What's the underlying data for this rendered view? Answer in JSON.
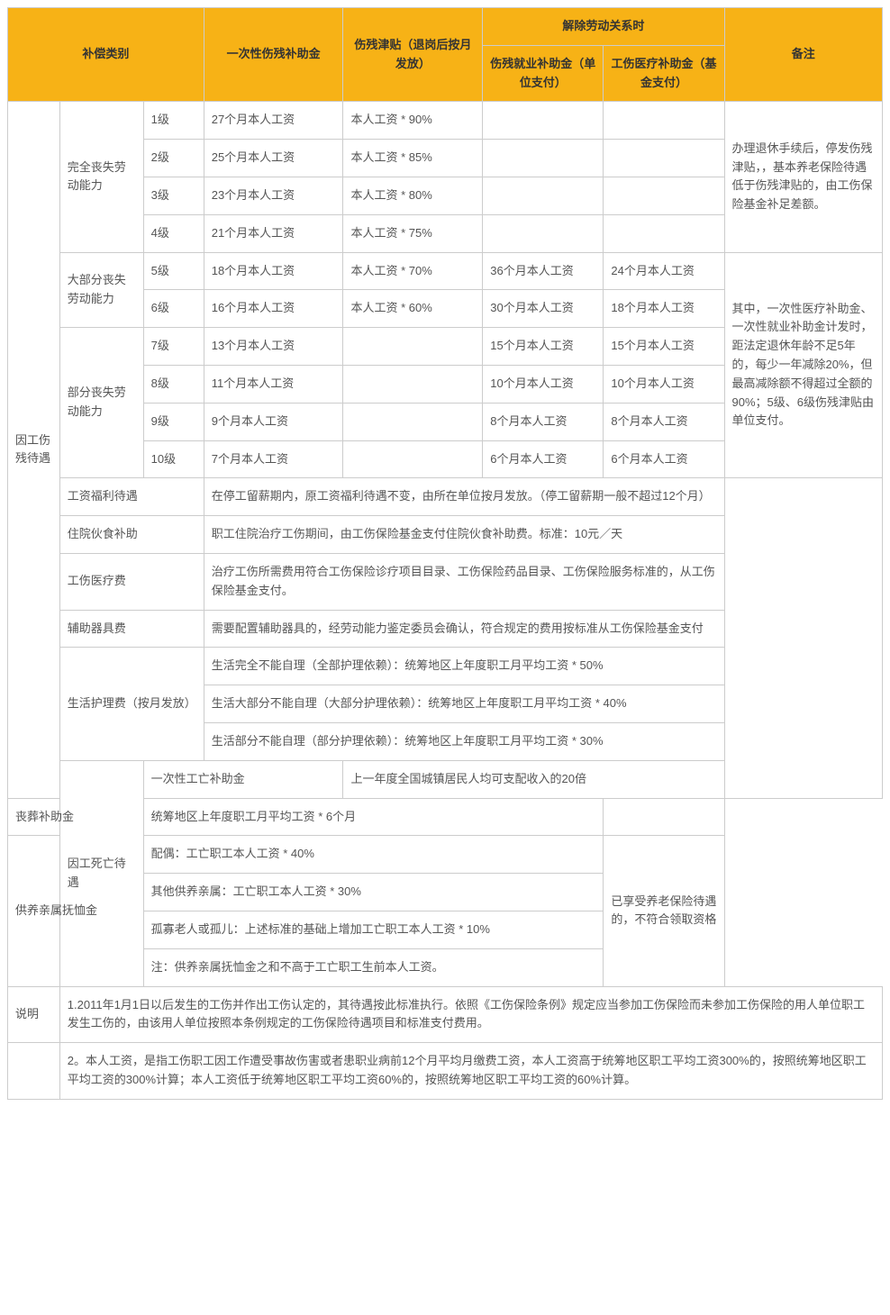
{
  "header": {
    "category": "补偿类别",
    "lumpSum": "一次性伤残补助金",
    "disabilityAllowance": "伤残津贴（退岗后按月发放）",
    "terminationGroup": "解除劳动关系时",
    "employmentSubsidy": "伤残就业补助金（单位支付）",
    "medicalSubsidy": "工伤医疗补助金（基金支付）",
    "remark": "备注"
  },
  "categories": {
    "disabilityBenefits": "因工伤残待遇",
    "deathBenefits": "因工死亡待遇",
    "explanation": "说明"
  },
  "lossTypes": {
    "full": "完全丧失劳动能力",
    "most": "大部分丧失劳动能力",
    "partial": "部分丧失劳动能力"
  },
  "levels": {
    "l1": {
      "name": "1级",
      "lump": "27个月本人工资",
      "allow": "本人工资 * 90%",
      "emp": "",
      "med": ""
    },
    "l2": {
      "name": "2级",
      "lump": "25个月本人工资",
      "allow": "本人工资 * 85%",
      "emp": "",
      "med": ""
    },
    "l3": {
      "name": "3级",
      "lump": "23个月本人工资",
      "allow": "本人工资 * 80%",
      "emp": "",
      "med": ""
    },
    "l4": {
      "name": "4级",
      "lump": "21个月本人工资",
      "allow": "本人工资 * 75%",
      "emp": "",
      "med": ""
    },
    "l5": {
      "name": "5级",
      "lump": "18个月本人工资",
      "allow": "本人工资 * 70%",
      "emp": "36个月本人工资",
      "med": "24个月本人工资"
    },
    "l6": {
      "name": "6级",
      "lump": "16个月本人工资",
      "allow": "本人工资 * 60%",
      "emp": "30个月本人工资",
      "med": "18个月本人工资"
    },
    "l7": {
      "name": "7级",
      "lump": "13个月本人工资",
      "allow": "",
      "emp": "15个月本人工资",
      "med": "15个月本人工资"
    },
    "l8": {
      "name": "8级",
      "lump": "11个月本人工资",
      "allow": "",
      "emp": "10个月本人工资",
      "med": "10个月本人工资"
    },
    "l9": {
      "name": "9级",
      "lump": "9个月本人工资",
      "allow": "",
      "emp": "8个月本人工资",
      "med": "8个月本人工资"
    },
    "l10": {
      "name": "10级",
      "lump": "7个月本人工资",
      "allow": "",
      "emp": "6个月本人工资",
      "med": "6个月本人工资"
    }
  },
  "remarks": {
    "r1": "办理退休手续后，停发伤残津贴，，基本养老保险待遇低于伤残津贴的，由工伤保险基金补足差额。",
    "r2": "其中，一次性医疗补助金、一次性就业补助金计发时，距法定退休年龄不足5年的，每少一年减除20%，但最高减除额不得超过全额的90%；5级、6级伤残津贴由单位支付。"
  },
  "otherItems": {
    "wageBenefit": {
      "label": "工资福利待遇",
      "text": "在停工留薪期内，原工资福利待遇不变，由所在单位按月发放。（停工留薪期一般不超过12个月）"
    },
    "hospitalFood": {
      "label": "住院伙食补助",
      "text": "职工住院治疗工伤期间，由工伤保险基金支付住院伙食补助费。标准：10元／天"
    },
    "medicalFee": {
      "label": "工伤医疗费",
      "text": "治疗工伤所需费用符合工伤保险诊疗项目目录、工伤保险药品目录、工伤保险服务标准的，从工伤保险基金支付。"
    },
    "aidDevice": {
      "label": "辅助器具费",
      "text": "需要配置辅助器具的，经劳动能力鉴定委员会确认，符合规定的费用按标准从工伤保险基金支付"
    },
    "careLabel": "生活护理费（按月发放）",
    "care1": "生活完全不能自理（全部护理依赖）：统筹地区上年度职工月平均工资 * 50%",
    "care2": "生活大部分不能自理（大部分护理依赖）：统筹地区上年度职工月平均工资 * 40%",
    "care3": "生活部分不能自理（部分护理依赖）：统筹地区上年度职工月平均工资 * 30%"
  },
  "death": {
    "onetime": {
      "label": "一次性工亡补助金",
      "text": "上一年度全国城镇居民人均可支配收入的20倍"
    },
    "funeral": {
      "label": "丧葬补助金",
      "text": "统筹地区上年度职工月平均工资 * 6个月"
    },
    "dependentLabel": "供养亲属抚恤金",
    "spouse": "配偶：工亡职工本人工资 * 40%",
    "other": "其他供养亲属：工亡职工本人工资 * 30%",
    "orphan": "孤寡老人或孤儿：上述标准的基础上增加工亡职工本人工资 * 10%",
    "note": "注：供养亲属抚恤金之和不高于工亡职工生前本人工资。",
    "remark": "已享受养老保险待遇的，不符合领取资格"
  },
  "explain": {
    "e1": "1.2011年1月1日以后发生的工伤并作出工伤认定的，其待遇按此标准执行。依照《工伤保险条例》规定应当参加工伤保险而未参加工伤保险的用人单位职工发生工伤的，由该用人单位按照本条例规定的工伤保险待遇项目和标准支付费用。",
    "e2": "2。本人工资，是指工伤职工因工作遭受事故伤害或者患职业病前12个月平均月缴费工资，本人工资高于统筹地区职工平均工资300%的，按照统筹地区职工平均工资的300%计算；本人工资低于统筹地区职工平均工资60%的，按照统筹地区职工平均工资的60%计算。"
  }
}
